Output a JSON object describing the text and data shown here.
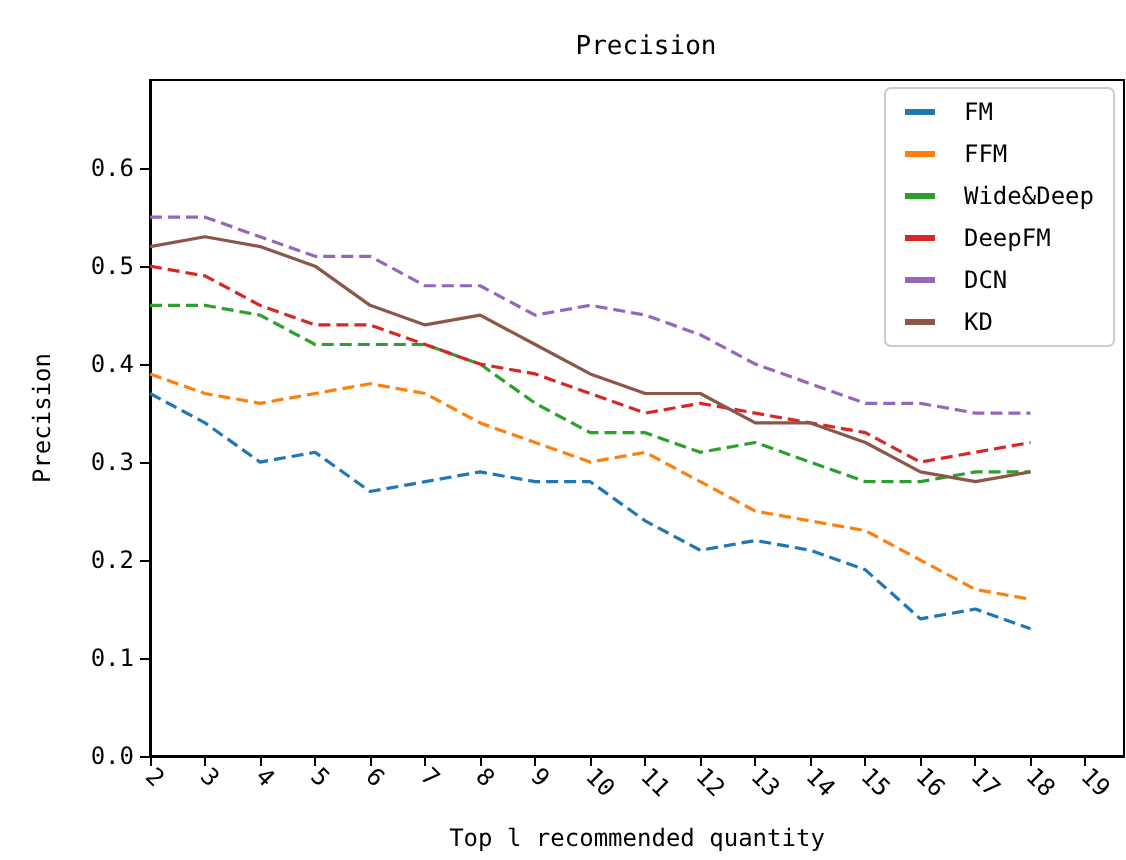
{
  "chart_data": {
    "type": "line",
    "title": "Precision",
    "xlabel": "Top l recommended quantity",
    "ylabel": "Precision",
    "x": [
      2,
      3,
      4,
      5,
      6,
      7,
      8,
      9,
      10,
      11,
      12,
      13,
      14,
      15,
      16,
      17,
      18
    ],
    "xlim": [
      2,
      19.7
    ],
    "xticks": [
      2,
      3,
      4,
      5,
      6,
      7,
      8,
      9,
      10,
      11,
      12,
      13,
      14,
      15,
      16,
      17,
      18,
      19
    ],
    "ylim": [
      0,
      0.69
    ],
    "yticks": [
      {
        "value": 0,
        "label": "0.0"
      },
      {
        "value": 0.1,
        "label": "0.1"
      },
      {
        "value": 0.2,
        "label": "0.2"
      },
      {
        "value": 0.3,
        "label": "0.3"
      },
      {
        "value": 0.4,
        "label": "0.4"
      },
      {
        "value": 0.5,
        "label": "0.5"
      },
      {
        "value": 0.6,
        "label": "0.6"
      }
    ],
    "grid": false,
    "legend": "top right",
    "marker": "none",
    "series": [
      {
        "name": "FM",
        "color": "#1f77b4",
        "line_style": "dashed",
        "values": [
          0.37,
          0.34,
          0.3,
          0.31,
          0.27,
          0.28,
          0.29,
          0.28,
          0.28,
          0.24,
          0.21,
          0.22,
          0.21,
          0.19,
          0.14,
          0.15,
          0.13
        ]
      },
      {
        "name": "FFM",
        "color": "#ff7f0e",
        "line_style": "dashed",
        "values": [
          0.39,
          0.37,
          0.36,
          0.37,
          0.38,
          0.37,
          0.34,
          0.32,
          0.3,
          0.31,
          0.28,
          0.25,
          0.24,
          0.23,
          0.2,
          0.17,
          0.16
        ]
      },
      {
        "name": "Wide&Deep",
        "color": "#2ca02c",
        "line_style": "dashed",
        "values": [
          0.46,
          0.46,
          0.45,
          0.42,
          0.42,
          0.42,
          0.4,
          0.36,
          0.33,
          0.33,
          0.31,
          0.32,
          0.3,
          0.28,
          0.28,
          0.29,
          0.29
        ]
      },
      {
        "name": "DeepFM",
        "color": "#d62728",
        "line_style": "dashed",
        "values": [
          0.5,
          0.49,
          0.46,
          0.44,
          0.44,
          0.42,
          0.4,
          0.39,
          0.37,
          0.35,
          0.36,
          0.35,
          0.34,
          0.33,
          0.3,
          0.31,
          0.32
        ]
      },
      {
        "name": "DCN",
        "color": "#9467bd",
        "line_style": "dashed",
        "values": [
          0.55,
          0.55,
          0.53,
          0.51,
          0.51,
          0.48,
          0.48,
          0.45,
          0.46,
          0.45,
          0.43,
          0.4,
          0.38,
          0.36,
          0.36,
          0.35,
          0.35
        ]
      },
      {
        "name": "KD",
        "color": "#8c564b",
        "line_style": "solid",
        "values": [
          0.52,
          0.53,
          0.52,
          0.5,
          0.46,
          0.44,
          0.45,
          0.42,
          0.39,
          0.37,
          0.37,
          0.34,
          0.34,
          0.32,
          0.29,
          0.28,
          0.29
        ]
      }
    ]
  }
}
